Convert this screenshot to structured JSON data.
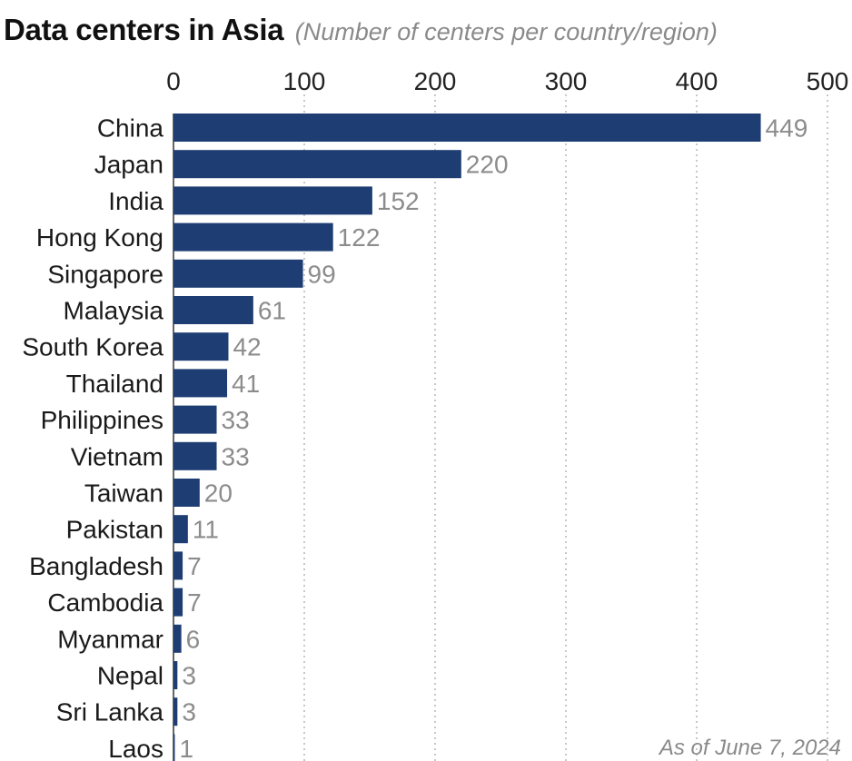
{
  "chart_data": {
    "type": "bar",
    "orientation": "horizontal",
    "title": "Data centers in Asia",
    "subtitle": "(Number of centers per country/region)",
    "categories": [
      "China",
      "Japan",
      "India",
      "Hong Kong",
      "Singapore",
      "Malaysia",
      "South Korea",
      "Thailand",
      "Philippines",
      "Vietnam",
      "Taiwan",
      "Pakistan",
      "Bangladesh",
      "Cambodia",
      "Myanmar",
      "Nepal",
      "Sri Lanka",
      "Laos"
    ],
    "values": [
      449,
      220,
      152,
      122,
      99,
      61,
      42,
      41,
      33,
      33,
      20,
      11,
      7,
      7,
      6,
      3,
      3,
      1
    ],
    "xlim": [
      0,
      500
    ],
    "xticks": [
      0,
      100,
      200,
      300,
      400,
      500
    ],
    "xaxis_position": "top",
    "grid": "vertical dotted",
    "bar_color": "#1e3d73",
    "note": "As of June 7, 2024"
  }
}
